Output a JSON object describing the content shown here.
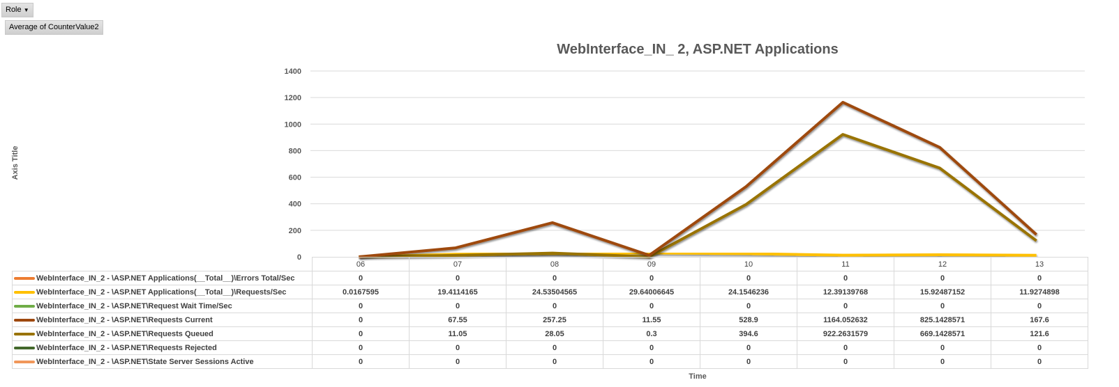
{
  "controls": {
    "role_label": "Role",
    "role_arrow": "▼",
    "value_field": "Average of CounterValue2"
  },
  "chart_data": {
    "type": "line",
    "title": "WebInterface_IN_ 2, ASP.NET Applications",
    "ylabel": "Axis Title",
    "xlabel": "Time",
    "ylim": [
      0,
      1400
    ],
    "yticks": [
      0,
      200,
      400,
      600,
      800,
      1000,
      1200,
      1400
    ],
    "grid": true,
    "legend": "data-table-bottom",
    "categories": [
      "06",
      "07",
      "08",
      "09",
      "10",
      "11",
      "12",
      "13"
    ],
    "series": [
      {
        "name": "WebInterface_IN_2 - \\ASP.NET Applications(__Total__)\\Errors Total/Sec",
        "color": "#ed7d31",
        "values": [
          "0",
          "0",
          "0",
          "0",
          "0",
          "0",
          "0",
          "0"
        ]
      },
      {
        "name": "WebInterface_IN_2 - \\ASP.NET Applications(__Total__)\\Requests/Sec",
        "color": "#ffc000",
        "values": [
          "0.0167595",
          "19.4114165",
          "24.53504565",
          "29.64006645",
          "24.1546236",
          "12.39139768",
          "15.92487152",
          "11.9274898"
        ]
      },
      {
        "name": "WebInterface_IN_2 - \\ASP.NET\\Request Wait Time/Sec",
        "color": "#70ad47",
        "values": [
          "0",
          "0",
          "0",
          "0",
          "0",
          "0",
          "0",
          "0"
        ]
      },
      {
        "name": "WebInterface_IN_2 - \\ASP.NET\\Requests Current",
        "color": "#9e480e",
        "values": [
          "0",
          "67.55",
          "257.25",
          "11.55",
          "528.9",
          "1164.052632",
          "825.1428571",
          "167.6"
        ]
      },
      {
        "name": "WebInterface_IN_2 - \\ASP.NET\\Requests Queued",
        "color": "#997300",
        "values": [
          "0",
          "11.05",
          "28.05",
          "0.3",
          "394.6",
          "922.2631579",
          "669.1428571",
          "121.6"
        ]
      },
      {
        "name": "WebInterface_IN_2 - \\ASP.NET\\Requests Rejected",
        "color": "#43682b",
        "values": [
          "0",
          "0",
          "0",
          "0",
          "0",
          "0",
          "0",
          "0"
        ]
      },
      {
        "name": "WebInterface_IN_2 - \\ASP.NET\\State Server Sessions Active",
        "color": "#f1975a",
        "values": [
          "0",
          "0",
          "0",
          "0",
          "0",
          "0",
          "0",
          "0"
        ]
      }
    ]
  }
}
